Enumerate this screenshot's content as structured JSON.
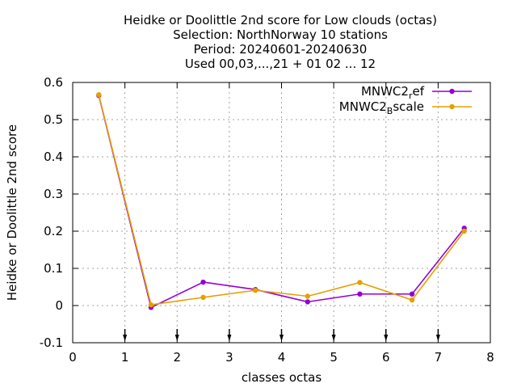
{
  "chart_data": {
    "type": "line",
    "title_lines": [
      "Heidke or Doolittle 2nd score  for Low clouds (octas)",
      "Selection: NorthNorway      10 stations",
      "Period: 20240601-20240630",
      "Used 00,03,...,21 + 01 02 ... 12"
    ],
    "xlabel": "classes octas",
    "ylabel": "Heidke or Doolittle 2nd score",
    "xlim": [
      0,
      8
    ],
    "ylim": [
      -0.1,
      0.6
    ],
    "x_ticks": [
      0,
      1,
      2,
      3,
      4,
      5,
      6,
      7,
      8
    ],
    "y_ticks": [
      -0.1,
      0,
      0.1,
      0.2,
      0.3,
      0.4,
      0.5,
      0.6
    ],
    "x_tick_labels": [
      "0",
      "1",
      "2",
      "3",
      "4",
      "5",
      "6",
      "7",
      "8"
    ],
    "y_tick_labels": [
      "-0.1",
      "0",
      "0.1",
      "0.2",
      "0.3",
      "0.4",
      "0.5",
      "0.6"
    ],
    "grid": true,
    "legend_position": "top-right",
    "arrow_markers_x": [
      1,
      2,
      3,
      4,
      5,
      6,
      7
    ],
    "series": [
      {
        "name_main": "MNWC2",
        "name_sub": "r",
        "name_rest": "ef",
        "color": "#9400d3",
        "x": [
          0.5,
          1.5,
          2.5,
          3.5,
          4.5,
          5.5,
          6.5,
          7.5
        ],
        "y": [
          0.565,
          -0.005,
          0.063,
          0.043,
          0.01,
          0.031,
          0.031,
          0.208
        ]
      },
      {
        "name_main": "MNWC2",
        "name_sub": "B",
        "name_rest": "scale",
        "color": "#e69f00",
        "x": [
          0.5,
          1.5,
          2.5,
          3.5,
          4.5,
          5.5,
          6.5,
          7.5
        ],
        "y": [
          0.567,
          0.002,
          0.022,
          0.041,
          0.025,
          0.062,
          0.015,
          0.2
        ]
      }
    ]
  }
}
